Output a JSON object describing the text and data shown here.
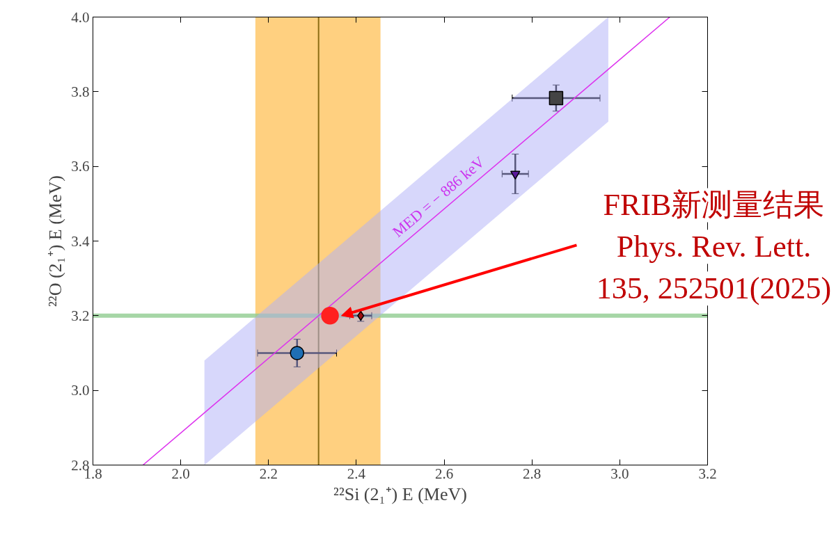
{
  "chart_data": {
    "type": "scatter",
    "xlabel": "²²Si (2₁⁺) E (MeV)",
    "ylabel": "²²O (2₁⁺) E (MeV)",
    "xlim": [
      1.8,
      3.2
    ],
    "xticks": [
      1.8,
      {
        "value": 2.0,
        "label": "2.0"
      },
      2.2,
      2.4,
      2.6,
      2.8,
      {
        "value": 3.0,
        "label": "3.0"
      },
      3.2
    ],
    "ylim": [
      2.8,
      4.0
    ],
    "yticks": [
      2.8,
      {
        "value": 3.0,
        "label": "3.0"
      },
      3.2,
      3.4,
      3.6,
      3.8,
      {
        "value": 4.0,
        "label": "4.0"
      }
    ],
    "grid": false,
    "bands": [
      {
        "axis": "x",
        "from": 2.17,
        "to": 2.455,
        "color": "#ffd080"
      }
    ],
    "ref_lines": [
      {
        "axis": "x",
        "value": 2.314,
        "color": "#8b6d14"
      },
      {
        "axis": "y",
        "value": 3.2,
        "color": "#90cc90"
      }
    ],
    "series": [
      {
        "type": "line",
        "x": [
          1.914,
          2.054,
          2.974,
          3.114
        ],
        "values": [
          2.8,
          2.94,
          3.86,
          4.0
        ],
        "lower": [
          null,
          2.8,
          3.72,
          null
        ],
        "upper": [
          null,
          3.08,
          4.0,
          null
        ],
        "color": "#dd33ee"
      },
      {
        "x": [
          2.265
        ],
        "values": [
          3.1
        ],
        "errors": [
          0.037
        ],
        "xerrors": [
          0.09
        ],
        "color": "#1f6fb4",
        "marker": "circle"
      },
      {
        "x": [
          2.41
        ],
        "values": [
          3.2
        ],
        "errors": [
          0.015
        ],
        "xerrors": [
          0.025
        ],
        "color": "#9b1010",
        "marker": "diamond"
      },
      {
        "x": [
          2.762
        ],
        "values": [
          3.58
        ],
        "errors": [
          0.053
        ],
        "xerrors": [
          0.03
        ],
        "color": "#5a1a9a",
        "marker": "triangle"
      },
      {
        "x": [
          2.855
        ],
        "values": [
          3.783
        ],
        "errors": [
          0.035
        ],
        "xerrors": [
          0.1
        ],
        "color": "#444444",
        "marker": "square"
      },
      {
        "x": [
          2.34
        ],
        "values": [
          3.2
        ],
        "color": "#ff2020",
        "marker": "circle"
      }
    ],
    "annotations": [
      {
        "text": "MED = − 886 keV",
        "x": 2.6,
        "y": 3.486
      },
      {
        "text": "FRIB新测量结果\nPhys. Rev. Lett.\n135, 252501(2025)",
        "x": 2.366,
        "y": 3.2
      }
    ]
  }
}
